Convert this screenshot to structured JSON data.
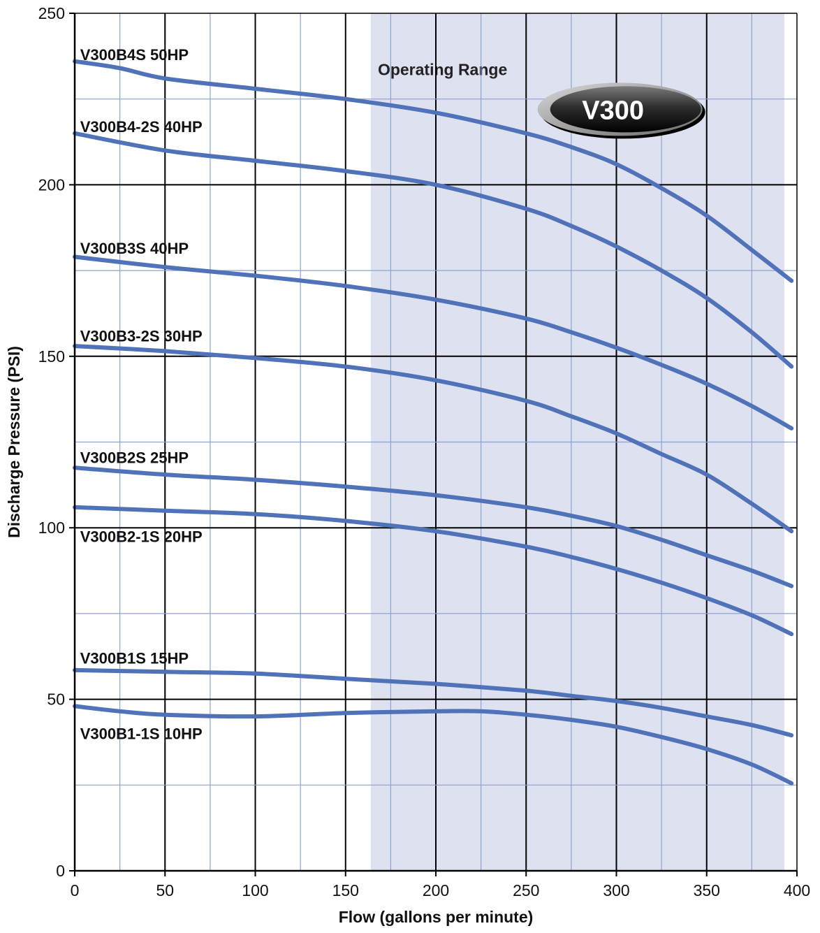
{
  "chart_data": {
    "type": "line",
    "title": "",
    "xlabel": "Flow (gallons per minute)",
    "ylabel": "Discharge Pressure (PSI)",
    "xlim": [
      0,
      400
    ],
    "ylim": [
      0,
      250
    ],
    "x_ticks": [
      0,
      50,
      100,
      150,
      200,
      250,
      300,
      350,
      400
    ],
    "y_ticks": [
      0,
      50,
      100,
      150,
      200,
      250
    ],
    "grid": true,
    "operating_range": {
      "label": "Operating Range",
      "x_start": 164,
      "x_end": 393,
      "color": "#dde1f0"
    },
    "badge": {
      "text": "V300"
    },
    "line_color": "#4f72b8",
    "series": [
      {
        "name": "V300B4S 50HP",
        "x": [
          0,
          25,
          50,
          100,
          150,
          200,
          250,
          275,
          300,
          325,
          350,
          375,
          397
        ],
        "y": [
          236,
          234,
          231,
          228,
          225,
          221,
          215,
          211,
          206,
          199,
          191,
          181,
          172
        ]
      },
      {
        "name": "V300B4-2S 40HP",
        "x": [
          0,
          50,
          100,
          150,
          200,
          250,
          275,
          300,
          325,
          350,
          375,
          397
        ],
        "y": [
          215,
          210,
          207,
          204,
          200,
          193,
          188,
          182,
          175,
          167,
          157,
          147
        ]
      },
      {
        "name": "V300B3S 40HP",
        "x": [
          0,
          50,
          100,
          150,
          200,
          250,
          275,
          300,
          325,
          350,
          375,
          397
        ],
        "y": [
          179,
          176,
          173.5,
          170.5,
          166.5,
          161,
          157,
          152.5,
          147.5,
          142,
          135.5,
          129
        ]
      },
      {
        "name": "V300B3-2S 30HP",
        "x": [
          0,
          50,
          100,
          150,
          200,
          250,
          275,
          300,
          325,
          350,
          375,
          397
        ],
        "y": [
          153,
          151.5,
          149.5,
          147,
          143,
          137,
          132.5,
          127.5,
          121.5,
          115.5,
          107,
          99
        ]
      },
      {
        "name": "V300B2S 25HP",
        "x": [
          0,
          50,
          100,
          150,
          200,
          250,
          275,
          300,
          325,
          350,
          375,
          397
        ],
        "y": [
          117.5,
          115.5,
          114,
          112,
          109.5,
          106,
          103.5,
          100.5,
          96.5,
          92,
          87.5,
          83
        ]
      },
      {
        "name": "V300B2-1S 20HP",
        "x": [
          0,
          50,
          100,
          150,
          200,
          250,
          275,
          300,
          325,
          350,
          375,
          397
        ],
        "y": [
          106,
          105,
          104,
          102,
          99,
          94.5,
          91.5,
          88,
          84,
          79.5,
          74.5,
          69
        ]
      },
      {
        "name": "V300B1S 15HP",
        "x": [
          0,
          50,
          100,
          150,
          200,
          250,
          275,
          300,
          325,
          350,
          375,
          397
        ],
        "y": [
          58.5,
          58,
          57.5,
          56,
          54.5,
          52.5,
          51,
          49.5,
          47.5,
          45,
          42.5,
          39.5
        ]
      },
      {
        "name": "V300B1-1S 10HP",
        "x": [
          0,
          25,
          50,
          100,
          150,
          200,
          225,
          250,
          275,
          300,
          325,
          350,
          375,
          397
        ],
        "y": [
          48,
          46.5,
          45.5,
          45,
          46,
          46.5,
          46.5,
          45.5,
          44,
          42,
          39,
          35.5,
          31,
          25.5
        ]
      }
    ],
    "labels": [
      {
        "text": "V300B4S  50HP",
        "x": 3,
        "y": 238
      },
      {
        "text": "V300B4-2S  40HP",
        "x": 3,
        "y": 217
      },
      {
        "text": "V300B3S  40HP",
        "x": 3,
        "y": 181.5
      },
      {
        "text": "V300B3-2S  30HP",
        "x": 3,
        "y": 156
      },
      {
        "text": "V300B2S  25HP",
        "x": 3,
        "y": 120.5
      },
      {
        "text": "V300B2-1S  20HP",
        "x": 3,
        "y": 97.5
      },
      {
        "text": "V300B1S  15HP",
        "x": 3,
        "y": 62
      },
      {
        "text": "V300B1-1S  10HP",
        "x": 3,
        "y": 40
      }
    ]
  }
}
